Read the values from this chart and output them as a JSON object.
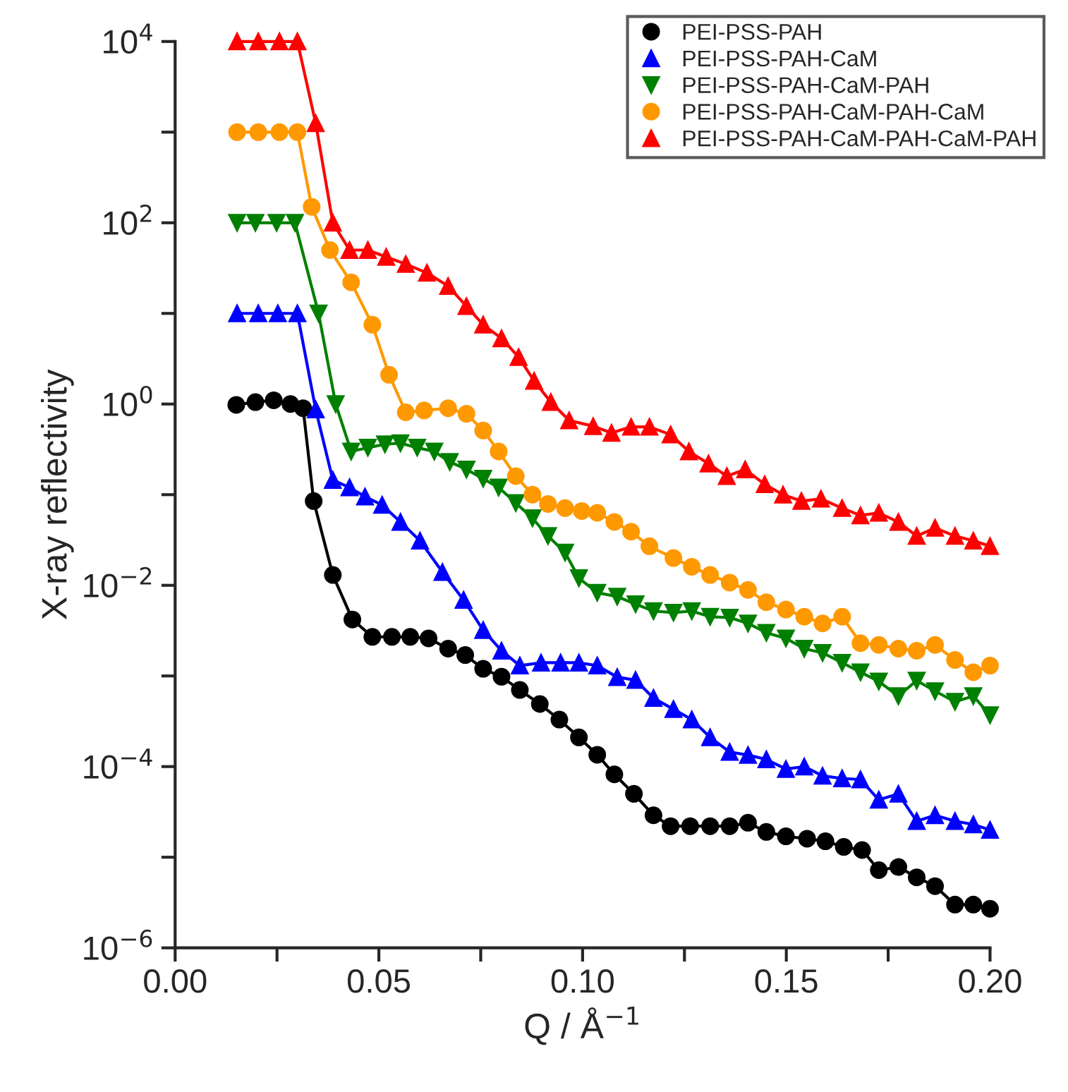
{
  "chart_data": {
    "type": "line",
    "xlabel": "Q / Å$^{−1}$",
    "ylabel": "X-ray reflectivity",
    "xlim": [
      0,
      0.2
    ],
    "ylim": [
      1e-06,
      10000
    ],
    "log": "y",
    "xticks": [
      {
        "value": 0,
        "label": "0.00"
      },
      {
        "value": 0.025,
        "label": null
      },
      {
        "value": 0.05,
        "label": "0.05"
      },
      {
        "value": 0.075,
        "label": null
      },
      {
        "value": 0.1,
        "label": "0.10"
      },
      {
        "value": 0.125,
        "label": null
      },
      {
        "value": 0.15,
        "label": "0.15"
      },
      {
        "value": 0.175,
        "label": null
      },
      {
        "value": 0.2,
        "label": "0.20"
      }
    ],
    "yticks": [
      {
        "value": 1e-06,
        "label": "10$^{−6}$"
      },
      {
        "value": 1e-05,
        "label": null
      },
      {
        "value": 0.0001,
        "label": "10$^{−4}$"
      },
      {
        "value": 0.001,
        "label": null
      },
      {
        "value": 0.01,
        "label": "10$^{−2}$"
      },
      {
        "value": 0.1,
        "label": null
      },
      {
        "value": 1,
        "label": "10$^{0}$"
      },
      {
        "value": 10,
        "label": null
      },
      {
        "value": 100,
        "label": "10$^{2}$"
      },
      {
        "value": 1000,
        "label": null
      },
      {
        "value": 10000,
        "label": "10$^{4}$"
      }
    ],
    "grid": false,
    "legend": "top right",
    "line_style": "solid",
    "series": [
      {
        "name": "PEI-PSS-PAH",
        "color": "#000000",
        "marker": "circle",
        "x": [
          0.015,
          0.0197,
          0.0242,
          0.0283,
          0.0314,
          0.034,
          0.0387,
          0.0435,
          0.0484,
          0.0532,
          0.0577,
          0.0622,
          0.067,
          0.0712,
          0.0756,
          0.0801,
          0.0846,
          0.0895,
          0.0943,
          0.0991,
          0.1036,
          0.1078,
          0.1126,
          0.1174,
          0.1216,
          0.1264,
          0.1313,
          0.1361,
          0.1406,
          0.1451,
          0.1499,
          0.1551,
          0.1596,
          0.1641,
          0.1686,
          0.1727,
          0.1775,
          0.182,
          0.1865,
          0.1914,
          0.1959,
          0.2
        ],
        "values": [
          0.98,
          1.05,
          1.1,
          1.0,
          0.9,
          0.085,
          0.013,
          0.0042,
          0.0027,
          0.0027,
          0.0027,
          0.0026,
          0.002,
          0.0017,
          0.0012,
          0.00098,
          0.0007,
          0.00049,
          0.00033,
          0.00021,
          0.000135,
          8.2e-05,
          5e-05,
          2.9e-05,
          2.2e-05,
          2.2e-05,
          2.2e-05,
          2.2e-05,
          2.4e-05,
          1.9e-05,
          1.7e-05,
          1.6e-05,
          1.5e-05,
          1.3e-05,
          1.2e-05,
          7.2e-06,
          7.8e-06,
          6e-06,
          4.8e-06,
          3e-06,
          3e-06,
          2.7e-06
        ]
      },
      {
        "name": "PEI-PSS-PAH-CaM",
        "color": "#0000ff",
        "marker": "triangle",
        "x": [
          0.0152,
          0.0204,
          0.0252,
          0.03,
          0.0345,
          0.0387,
          0.0428,
          0.0466,
          0.0508,
          0.0553,
          0.0601,
          0.0656,
          0.0708,
          0.0756,
          0.0801,
          0.0846,
          0.0898,
          0.0946,
          0.0991,
          0.1036,
          0.1085,
          0.113,
          0.1174,
          0.1223,
          0.1268,
          0.1313,
          0.1361,
          0.1406,
          0.1451,
          0.1499,
          0.1544,
          0.1589,
          0.1637,
          0.1682,
          0.1727,
          0.1775,
          0.182,
          0.1865,
          0.1914,
          0.1959,
          0.2
        ],
        "values": [
          10,
          10,
          10,
          10,
          0.87,
          0.145,
          0.12,
          0.095,
          0.077,
          0.05,
          0.031,
          0.014,
          0.0069,
          0.0032,
          0.0019,
          0.0013,
          0.0014,
          0.0014,
          0.0014,
          0.0013,
          0.00097,
          0.0009,
          0.00057,
          0.00043,
          0.00033,
          0.00021,
          0.000145,
          0.000134,
          0.00012,
          9.4e-05,
          0.0001,
          7.9e-05,
          7.4e-05,
          7.2e-05,
          4.3e-05,
          5e-05,
          2.5e-05,
          2.9e-05,
          2.5e-05,
          2.3e-05,
          2e-05
        ]
      },
      {
        "name": "PEI-PSS-PAH-CaM-PAH",
        "color": "#008000",
        "marker": "triangle_down",
        "x": [
          0.0152,
          0.0197,
          0.0249,
          0.0294,
          0.0352,
          0.0394,
          0.0432,
          0.0473,
          0.0515,
          0.0553,
          0.0594,
          0.0636,
          0.0674,
          0.0715,
          0.0756,
          0.0794,
          0.0836,
          0.0877,
          0.0915,
          0.0957,
          0.0991,
          0.1036,
          0.1085,
          0.113,
          0.1174,
          0.1223,
          0.1268,
          0.1313,
          0.1361,
          0.1406,
          0.1451,
          0.1499,
          0.1544,
          0.1589,
          0.1637,
          0.1682,
          0.1727,
          0.1775,
          0.182,
          0.1865,
          0.1914,
          0.1959,
          0.2
        ],
        "values": [
          100,
          100,
          100,
          100,
          10,
          1.0,
          0.3,
          0.33,
          0.36,
          0.37,
          0.33,
          0.3,
          0.23,
          0.19,
          0.15,
          0.12,
          0.081,
          0.055,
          0.035,
          0.023,
          0.012,
          0.0083,
          0.0075,
          0.0062,
          0.0052,
          0.005,
          0.0052,
          0.0045,
          0.0044,
          0.0038,
          0.003,
          0.0026,
          0.002,
          0.0018,
          0.0014,
          0.0011,
          0.00087,
          0.0006,
          0.00089,
          0.00068,
          0.00052,
          0.0006,
          0.00037
        ]
      },
      {
        "name": "PEI-PSS-PAH-CaM-PAH-CaM",
        "color": "#ff9900",
        "marker": "circle",
        "x": [
          0.0152,
          0.0204,
          0.0256,
          0.03,
          0.0335,
          0.038,
          0.0432,
          0.0484,
          0.0525,
          0.0566,
          0.0611,
          0.067,
          0.0715,
          0.0756,
          0.0794,
          0.0836,
          0.0877,
          0.0915,
          0.0957,
          0.0998,
          0.1036,
          0.1078,
          0.1119,
          0.1164,
          0.1223,
          0.1268,
          0.1313,
          0.1361,
          0.1406,
          0.1451,
          0.1499,
          0.1544,
          0.1589,
          0.1637,
          0.1682,
          0.1727,
          0.1775,
          0.182,
          0.1865,
          0.1914,
          0.1959,
          0.2
        ],
        "values": [
          1000,
          1000,
          1000,
          1000,
          150,
          50,
          22,
          7.5,
          2.1,
          0.81,
          0.85,
          0.9,
          0.78,
          0.51,
          0.3,
          0.16,
          0.1,
          0.079,
          0.071,
          0.066,
          0.063,
          0.05,
          0.039,
          0.027,
          0.02,
          0.016,
          0.013,
          0.0107,
          0.0089,
          0.0065,
          0.0054,
          0.0045,
          0.0038,
          0.0045,
          0.0023,
          0.0022,
          0.002,
          0.0019,
          0.0022,
          0.0015,
          0.0011,
          0.0013
        ]
      },
      {
        "name": "PEI-PSS-PAH-CaM-PAH-CaM-PAH",
        "color": "#ff0000",
        "marker": "triangle",
        "x": [
          0.0152,
          0.0204,
          0.0256,
          0.03,
          0.0345,
          0.0387,
          0.0428,
          0.0473,
          0.0518,
          0.0566,
          0.0618,
          0.067,
          0.0715,
          0.0756,
          0.0801,
          0.0843,
          0.0881,
          0.0922,
          0.0967,
          0.1026,
          0.1071,
          0.1119,
          0.1164,
          0.1216,
          0.1261,
          0.1309,
          0.1354,
          0.1399,
          0.1447,
          0.1492,
          0.1537,
          0.1585,
          0.1637,
          0.1682,
          0.1727,
          0.1775,
          0.182,
          0.1865,
          0.1914,
          0.1959,
          0.2
        ],
        "values": [
          10000,
          10000,
          10000,
          10000,
          1250,
          100,
          50,
          50,
          42,
          35,
          28,
          20,
          12,
          7.5,
          5.3,
          3.3,
          1.8,
          1.05,
          0.66,
          0.57,
          0.48,
          0.56,
          0.56,
          0.46,
          0.3,
          0.22,
          0.16,
          0.19,
          0.13,
          0.1,
          0.085,
          0.09,
          0.071,
          0.059,
          0.063,
          0.05,
          0.035,
          0.043,
          0.035,
          0.031,
          0.027
        ]
      }
    ]
  }
}
